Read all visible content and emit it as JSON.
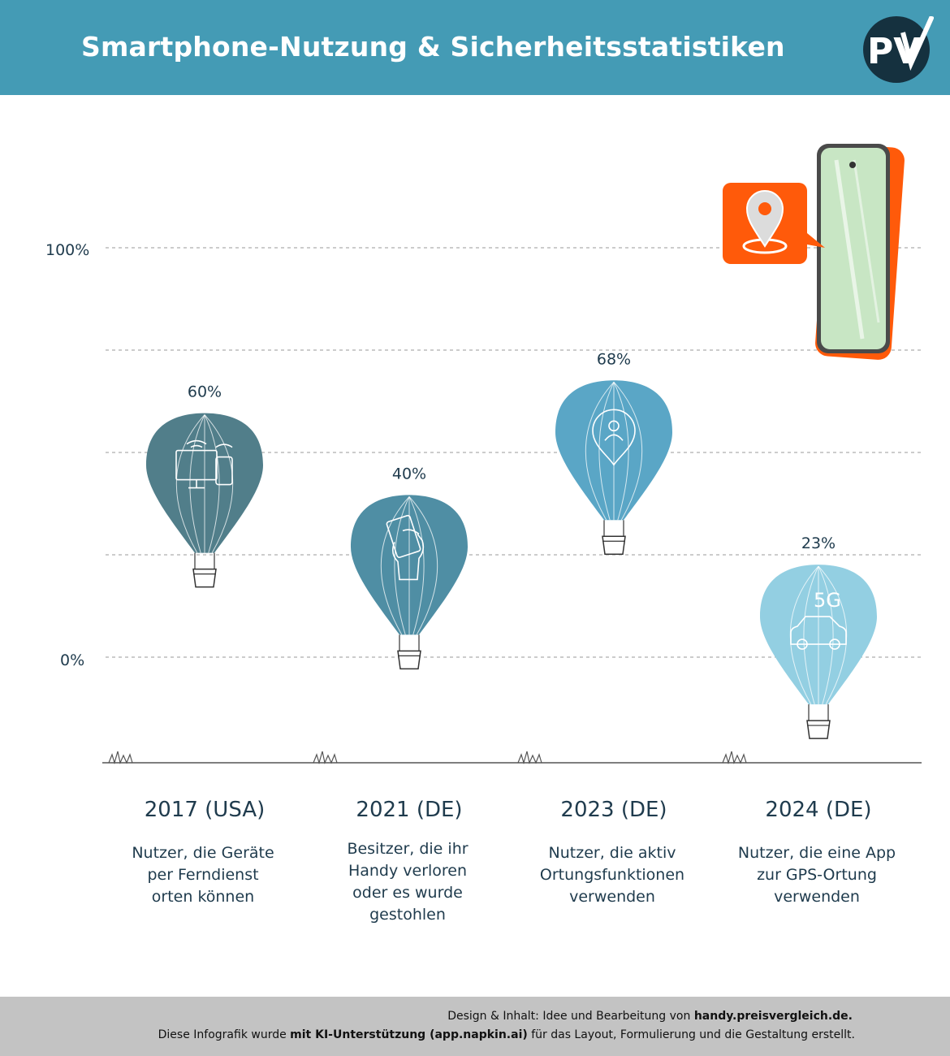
{
  "header": {
    "title": "Smartphone-Nutzung & Sicherheitsstatistiken",
    "logo_text": "PV"
  },
  "colors": {
    "header_bg": "#449bb5",
    "balloons": [
      "#517e8a",
      "#4f8ea4",
      "#5aa6c6",
      "#93cfe2"
    ],
    "phone_frame": "#ff5a0a",
    "phone_screen": "#c8e6c4",
    "footer_bg": "#c3c3c3"
  },
  "chart_data": {
    "type": "pictorial-scatter",
    "ylim": [
      0,
      100
    ],
    "ytick_labels": [
      "100%",
      "0%"
    ],
    "gridlines": [
      0,
      25,
      50,
      75,
      100
    ],
    "points": [
      {
        "category": "2017 (USA)",
        "value": 60,
        "value_label": "60%",
        "description": [
          "Nutzer, die Geräte",
          "per Ferndienst",
          "orten können"
        ],
        "icon": "monitor-phone-icon"
      },
      {
        "category": "2021 (DE)",
        "value": 40,
        "value_label": "40%",
        "description": [
          "Besitzer, die ihr",
          "Handy verloren",
          "oder es wurde",
          "gestohlen"
        ],
        "icon": "hand-phone-icon"
      },
      {
        "category": "2023 (DE)",
        "value": 68,
        "value_label": "68%",
        "description": [
          "Nutzer, die aktiv",
          "Ortungsfunktionen",
          "verwenden"
        ],
        "icon": "location-person-icon"
      },
      {
        "category": "2024 (DE)",
        "value": 23,
        "value_label": "23%",
        "description": [
          "Nutzer, die eine App",
          "zur GPS-Ortung",
          "verwenden"
        ],
        "icon": "car-5g-icon",
        "icon_text": "5G"
      }
    ]
  },
  "footer": {
    "line1_prefix": "Design & Inhalt: Idee und Bearbeitung von ",
    "line1_bold": "handy.preisvergleich.de.",
    "line2_prefix": "Diese Infografik wurde ",
    "line2_bold": "mit KI-Unterstützung (app.napkin.ai)",
    "line2_suffix": " für das Layout, Formulierung und die Gestaltung erstellt."
  }
}
